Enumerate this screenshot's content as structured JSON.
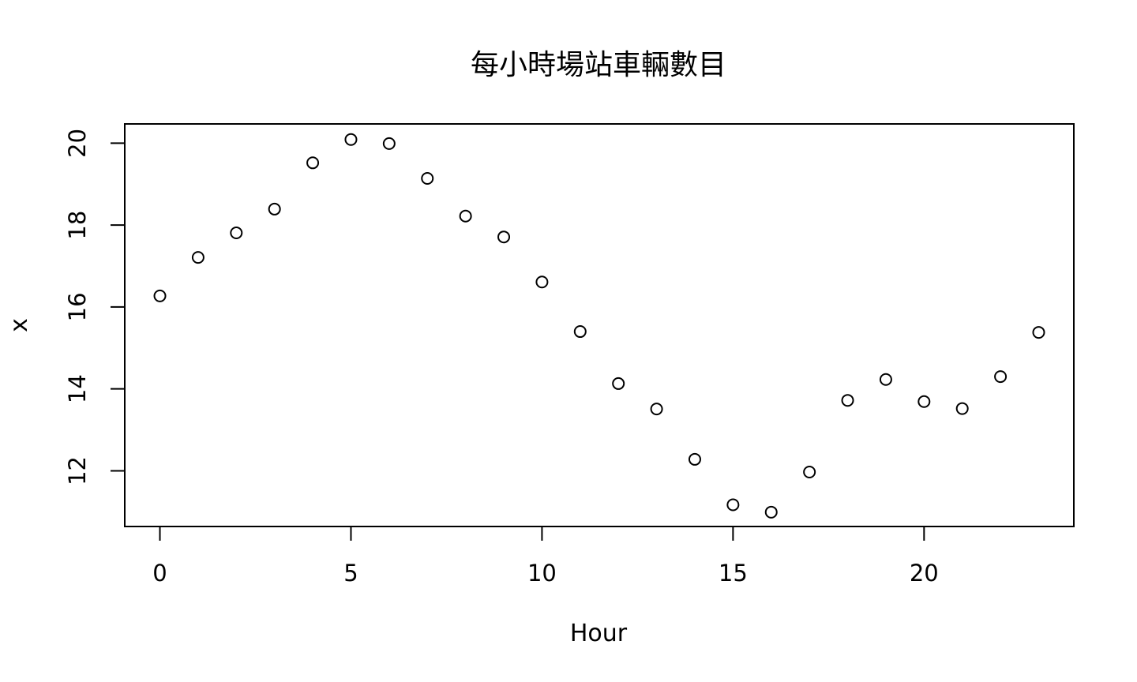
{
  "chart_data": {
    "type": "scatter",
    "title": "每小時場站車輛數目",
    "xlabel": "Hour",
    "ylabel": "x",
    "xlim": [
      -0.92,
      23.92
    ],
    "ylim": [
      10.64,
      20.47
    ],
    "x_ticks": [
      0,
      5,
      10,
      15,
      20
    ],
    "y_ticks": [
      12,
      14,
      16,
      18,
      20
    ],
    "x": [
      0,
      1,
      2,
      3,
      4,
      5,
      6,
      7,
      8,
      9,
      10,
      11,
      12,
      13,
      14,
      15,
      16,
      17,
      18,
      19,
      20,
      21,
      22,
      23
    ],
    "y": [
      16.27,
      17.21,
      17.81,
      18.39,
      19.52,
      20.09,
      19.99,
      19.14,
      18.22,
      17.71,
      16.61,
      15.4,
      14.13,
      13.51,
      12.28,
      11.17,
      10.99,
      11.97,
      13.72,
      14.23,
      13.69,
      13.52,
      14.3,
      15.38
    ],
    "grid": false,
    "legend": "none",
    "colors": {
      "points": "#000000",
      "axes": "#000000",
      "background": "#ffffff"
    }
  }
}
